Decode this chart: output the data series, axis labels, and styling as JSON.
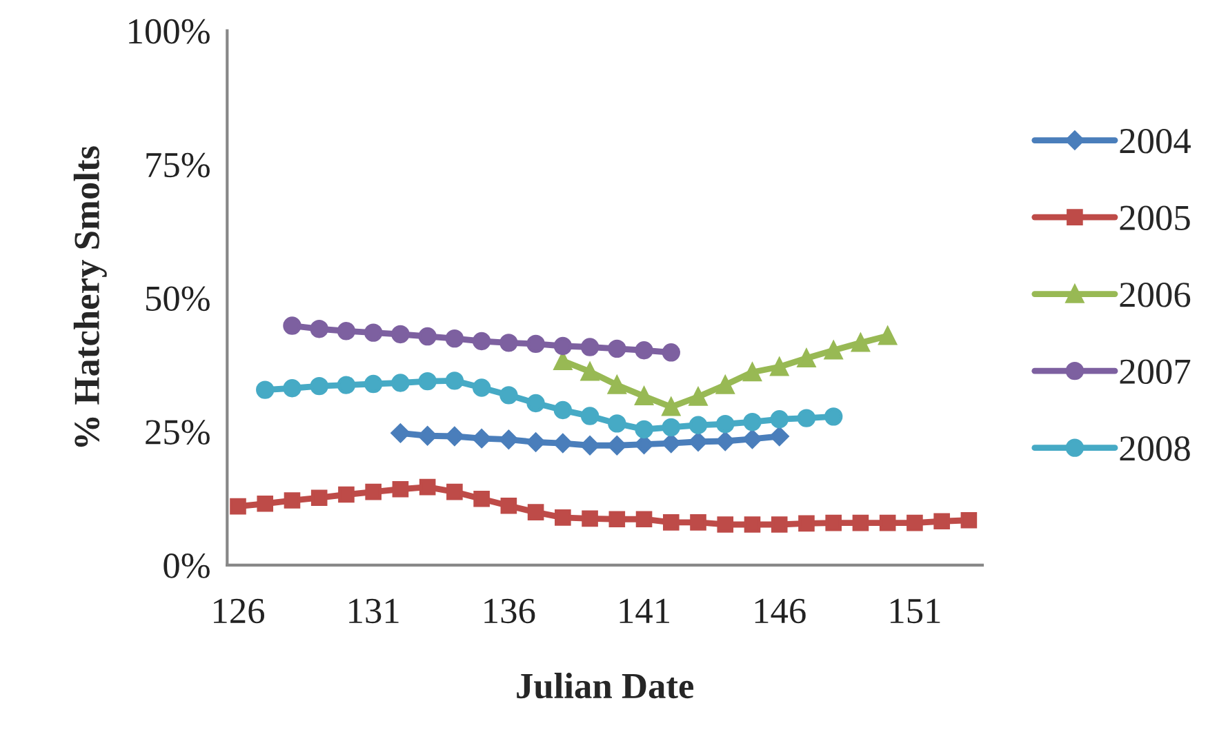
{
  "chart_data": {
    "type": "line",
    "xlabel": "Julian Date",
    "ylabel": "% Hatchery Smolts",
    "xlim": [
      125.6,
      153.5
    ],
    "xticks": [
      126,
      131,
      136,
      141,
      146,
      151
    ],
    "ylim": [
      0,
      100
    ],
    "yticks": [
      {
        "value": 0,
        "label": "0%"
      },
      {
        "value": 25,
        "label": "25%"
      },
      {
        "value": 50,
        "label": "50%"
      },
      {
        "value": 75,
        "label": "75%"
      },
      {
        "value": 100,
        "label": "100%"
      }
    ],
    "grid": false,
    "legend": "right",
    "line_style": "solid",
    "series": [
      {
        "name": "2004",
        "color": "#4a7ebb",
        "marker": "diamond",
        "x": [
          132,
          133,
          134,
          135,
          136,
          137,
          138,
          139,
          140,
          141,
          142,
          143,
          144,
          145,
          146
        ],
        "values": [
          24.7,
          24.2,
          24.1,
          23.7,
          23.5,
          23.0,
          22.8,
          22.4,
          22.4,
          22.6,
          22.8,
          23.1,
          23.2,
          23.6,
          24.1
        ]
      },
      {
        "name": "2005",
        "color": "#be4b48",
        "marker": "square",
        "x": [
          126,
          127,
          128,
          129,
          130,
          131,
          132,
          133,
          134,
          135,
          136,
          137,
          138,
          139,
          140,
          141,
          142,
          143,
          144,
          145,
          146,
          147,
          148,
          149,
          150,
          151,
          152,
          153
        ],
        "values": [
          11.0,
          11.5,
          12.1,
          12.6,
          13.2,
          13.7,
          14.2,
          14.6,
          13.7,
          12.4,
          11.1,
          9.9,
          8.9,
          8.7,
          8.6,
          8.6,
          8.0,
          8.0,
          7.6,
          7.6,
          7.6,
          7.8,
          7.9,
          7.9,
          7.9,
          7.9,
          8.2,
          8.4
        ]
      },
      {
        "name": "2006",
        "color": "#98b954",
        "marker": "triangle",
        "x": [
          138,
          139,
          140,
          141,
          142,
          143,
          144,
          145,
          146,
          147,
          148,
          149,
          150
        ],
        "values": [
          38.2,
          36.2,
          33.7,
          31.6,
          29.6,
          31.5,
          33.7,
          36.1,
          37.1,
          38.7,
          40.2,
          41.6,
          42.9
        ]
      },
      {
        "name": "2007",
        "color": "#7d60a0",
        "marker": "circle",
        "x": [
          128,
          129,
          130,
          131,
          132,
          133,
          134,
          135,
          136,
          137,
          138,
          139,
          140,
          141,
          142
        ],
        "values": [
          44.8,
          44.2,
          43.8,
          43.5,
          43.2,
          42.8,
          42.4,
          41.9,
          41.6,
          41.4,
          41.0,
          40.8,
          40.5,
          40.2,
          39.8
        ]
      },
      {
        "name": "2008",
        "color": "#46aac5",
        "marker": "circle",
        "x": [
          127,
          128,
          129,
          130,
          131,
          132,
          133,
          134,
          135,
          136,
          137,
          138,
          139,
          140,
          141,
          142,
          143,
          144,
          145,
          146,
          147,
          148
        ],
        "values": [
          32.8,
          33.1,
          33.5,
          33.7,
          33.9,
          34.1,
          34.4,
          34.5,
          33.2,
          31.8,
          30.3,
          29.0,
          27.9,
          26.5,
          25.4,
          25.8,
          26.2,
          26.4,
          26.8,
          27.3,
          27.5,
          27.8
        ]
      }
    ]
  }
}
